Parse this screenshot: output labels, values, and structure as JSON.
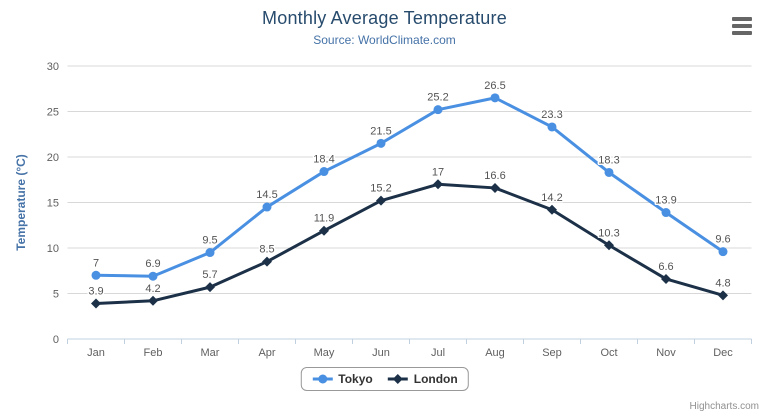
{
  "header": {
    "title": "Monthly Average Temperature",
    "subtitle": "Source: WorldClimate.com"
  },
  "icons": {
    "context_menu": "hamburger-icon"
  },
  "chart_data": {
    "type": "line",
    "title": "Monthly Average Temperature",
    "subtitle": "Source: WorldClimate.com",
    "categories": [
      "Jan",
      "Feb",
      "Mar",
      "Apr",
      "May",
      "Jun",
      "Jul",
      "Aug",
      "Sep",
      "Oct",
      "Nov",
      "Dec"
    ],
    "series": [
      {
        "name": "Tokyo",
        "color": "#4a90e2",
        "marker": "circle",
        "values": [
          7,
          6.9,
          9.5,
          14.5,
          18.4,
          21.5,
          25.2,
          26.5,
          23.3,
          18.3,
          13.9,
          9.6
        ]
      },
      {
        "name": "London",
        "color": "#1c3148",
        "marker": "diamond",
        "values": [
          3.9,
          4.2,
          5.7,
          8.5,
          11.9,
          15.2,
          17,
          16.6,
          14.2,
          10.3,
          6.6,
          4.8
        ]
      }
    ],
    "xlabel": "",
    "ylabel": "Temperature (°C)",
    "ylim": [
      0,
      30
    ],
    "ytick_interval": 5,
    "yticks": [
      0,
      5,
      10,
      15,
      20,
      25,
      30
    ],
    "grid": true,
    "data_labels": true,
    "legend_position": "bottom",
    "colors": {
      "title": "#274b6d",
      "subtitle": "#4572a7",
      "axis_title": "#4572a7",
      "tick_label": "#606060",
      "data_label": "#545454",
      "gridline": "#d8d8d8",
      "axis_line": "#c0d0e0",
      "legend_border": "#999999",
      "legend_text": "#333333",
      "credits_text": "#909090"
    }
  },
  "credits": {
    "label": "Highcharts.com"
  }
}
